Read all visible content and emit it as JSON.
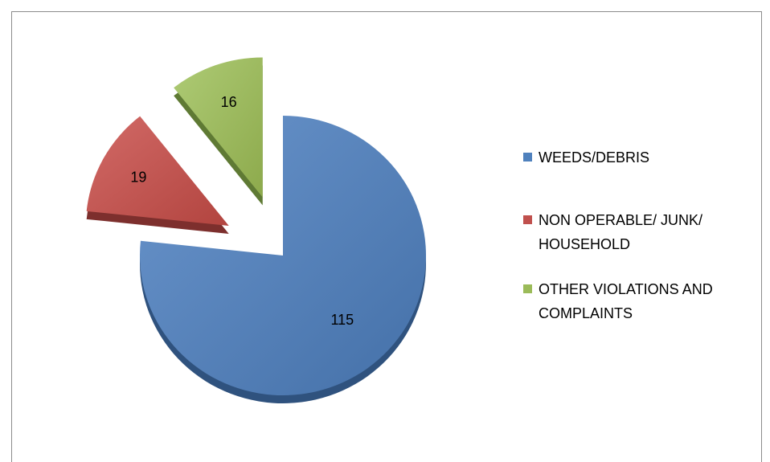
{
  "chart_data": {
    "type": "pie",
    "exploded": true,
    "three_d": true,
    "categories": [
      "WEEDS/DEBRIS",
      "NON OPERABLE/ JUNK/ HOUSEHOLD",
      "OTHER VIOLATIONS AND COMPLAINTS"
    ],
    "values": [
      115,
      19,
      16
    ],
    "data_labels": [
      "115",
      "19",
      "16"
    ],
    "legend_lines": [
      [
        "WEEDS/DEBRIS"
      ],
      [
        "NON OPERABLE/ JUNK/",
        "HOUSEHOLD"
      ],
      [
        "OTHER VIOLATIONS AND",
        "COMPLAINTS"
      ]
    ],
    "colors": [
      "#4f81bd",
      "#c0504d",
      "#9bbb59"
    ],
    "side_colors": [
      "#2f527e",
      "#7d2f2d",
      "#5f7a34"
    ],
    "legend_position": "right"
  }
}
